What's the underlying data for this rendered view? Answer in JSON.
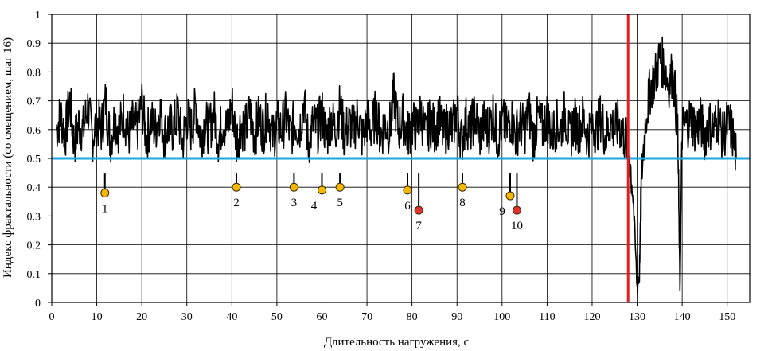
{
  "chart_data": {
    "type": "line",
    "xlabel": "Длительность нагружения, с",
    "ylabel": "Индекс фрактальности (со смещением, шаг 16)",
    "xlim": [
      0,
      155
    ],
    "ylim": [
      0,
      1
    ],
    "x_ticks": [
      "0",
      "10",
      "20",
      "30",
      "40",
      "50",
      "60",
      "70",
      "80",
      "90",
      "100",
      "110",
      "120",
      "130",
      "140",
      "150"
    ],
    "y_ticks": [
      "0",
      "0.1",
      "0.2",
      "0.3",
      "0.4",
      "0.5",
      "0.6",
      "0.7",
      "0.8",
      "0.9",
      "1"
    ],
    "grid": true,
    "series": [
      {
        "color": "#000000",
        "x": [
          1,
          2,
          3,
          4,
          5,
          6,
          7,
          8,
          9,
          10,
          11,
          12,
          13,
          14,
          15,
          16,
          17,
          18,
          19,
          20,
          21,
          22,
          23,
          24,
          25,
          26,
          27,
          28,
          29,
          30,
          31,
          32,
          33,
          34,
          35,
          36,
          37,
          38,
          39,
          40,
          41,
          42,
          43,
          44,
          45,
          46,
          47,
          48,
          49,
          50,
          51,
          52,
          53,
          54,
          55,
          56,
          57,
          58,
          59,
          60,
          61,
          62,
          63,
          64,
          65,
          66,
          67,
          68,
          69,
          70,
          71,
          72,
          73,
          74,
          75,
          76,
          77,
          78,
          79,
          80,
          81,
          82,
          83,
          84,
          85,
          86,
          87,
          88,
          89,
          90,
          91,
          92,
          93,
          94,
          95,
          96,
          97,
          98,
          99,
          100,
          101,
          102,
          103,
          104,
          105,
          106,
          107,
          108,
          109,
          110,
          111,
          112,
          113,
          114,
          115,
          116,
          117,
          118,
          119,
          120,
          121,
          122,
          123,
          124,
          125,
          126,
          127,
          128,
          129,
          130,
          130.5,
          131,
          132,
          133,
          134,
          135,
          136,
          137,
          138,
          139,
          139.5,
          140,
          141,
          142,
          143,
          144,
          145,
          146,
          147,
          148,
          149,
          150,
          151,
          152
        ],
        "y": [
          0.6,
          0.65,
          0.58,
          0.7,
          0.55,
          0.62,
          0.6,
          0.68,
          0.57,
          0.63,
          0.6,
          0.7,
          0.56,
          0.64,
          0.6,
          0.66,
          0.58,
          0.62,
          0.6,
          0.69,
          0.57,
          0.63,
          0.6,
          0.67,
          0.58,
          0.61,
          0.6,
          0.66,
          0.55,
          0.64,
          0.6,
          0.68,
          0.58,
          0.62,
          0.6,
          0.66,
          0.57,
          0.63,
          0.6,
          0.69,
          0.56,
          0.62,
          0.6,
          0.66,
          0.58,
          0.64,
          0.6,
          0.67,
          0.57,
          0.62,
          0.6,
          0.65,
          0.58,
          0.63,
          0.6,
          0.7,
          0.55,
          0.62,
          0.6,
          0.66,
          0.57,
          0.64,
          0.6,
          0.68,
          0.58,
          0.62,
          0.6,
          0.65,
          0.57,
          0.63,
          0.6,
          0.66,
          0.58,
          0.62,
          0.6,
          0.72,
          0.6,
          0.64,
          0.58,
          0.62,
          0.6,
          0.66,
          0.57,
          0.63,
          0.6,
          0.64,
          0.58,
          0.62,
          0.6,
          0.67,
          0.56,
          0.63,
          0.6,
          0.65,
          0.58,
          0.62,
          0.6,
          0.66,
          0.57,
          0.63,
          0.6,
          0.64,
          0.58,
          0.62,
          0.6,
          0.66,
          0.57,
          0.64,
          0.6,
          0.65,
          0.58,
          0.62,
          0.6,
          0.66,
          0.57,
          0.63,
          0.6,
          0.64,
          0.58,
          0.62,
          0.6,
          0.65,
          0.57,
          0.63,
          0.6,
          0.62,
          0.58,
          0.55,
          0.4,
          0.05,
          0.1,
          0.45,
          0.65,
          0.75,
          0.78,
          0.85,
          0.82,
          0.76,
          0.8,
          0.6,
          0.05,
          0.6,
          0.62,
          0.64,
          0.6,
          0.63,
          0.58,
          0.62,
          0.6,
          0.64,
          0.57,
          0.62,
          0.6,
          0.5
        ]
      }
    ],
    "threshold": {
      "value": 0.5,
      "color": "#1aa7e0"
    },
    "vertical_marker": {
      "x": 128,
      "color": "#e02020"
    },
    "markers": [
      {
        "label": "1",
        "x": 11.8,
        "y": 0.38,
        "color": "#f5b800"
      },
      {
        "label": "2",
        "x": 41.0,
        "y": 0.4,
        "color": "#f5b800"
      },
      {
        "label": "3",
        "x": 53.8,
        "y": 0.4,
        "color": "#f5b800"
      },
      {
        "label": "4",
        "x": 60.0,
        "y": 0.39,
        "color": "#f5b800"
      },
      {
        "label": "5",
        "x": 64.0,
        "y": 0.4,
        "color": "#f5b800"
      },
      {
        "label": "6",
        "x": 79.0,
        "y": 0.39,
        "color": "#f5b800"
      },
      {
        "label": "7",
        "x": 81.5,
        "y": 0.32,
        "color": "#e03030"
      },
      {
        "label": "8",
        "x": 91.2,
        "y": 0.4,
        "color": "#f5b800"
      },
      {
        "label": "9",
        "x": 101.8,
        "y": 0.37,
        "color": "#f5b800"
      },
      {
        "label": "10",
        "x": 103.3,
        "y": 0.32,
        "color": "#e03030"
      }
    ]
  }
}
